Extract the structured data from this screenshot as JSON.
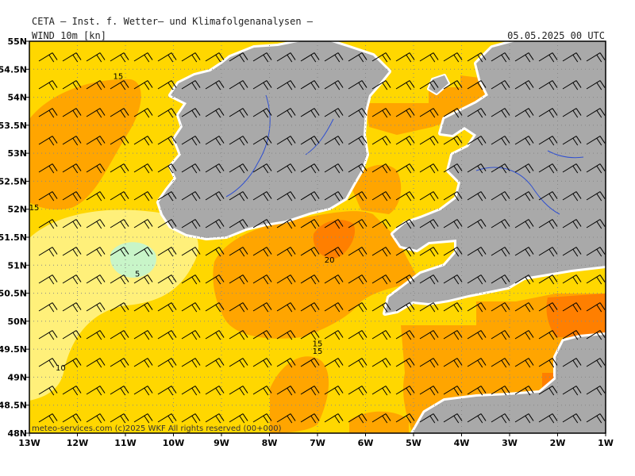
{
  "header": {
    "title": "CETA – Inst. f. Wetter– und Klimafolgenanalysen –",
    "variable": "WIND_10m [kn]",
    "valid": "05.05.2025 00 UTC"
  },
  "footer": {
    "copyright": "meteo-services.com (c)2025 WKF All rights reserved (00+000)"
  },
  "axes": {
    "lon_labels": [
      "13W",
      "12W",
      "11W",
      "10W",
      "9W",
      "8W",
      "7W",
      "6W",
      "5W",
      "4W",
      "3W",
      "2W",
      "1W"
    ],
    "lat_labels": [
      "55N",
      "54.5N",
      "54N",
      "53.5N",
      "53N",
      "52.5N",
      "52N",
      "51.5N",
      "51N",
      "50.5N",
      "50N",
      "49.5N",
      "49N",
      "48.5N",
      "48N"
    ],
    "lon_range": [
      -13,
      -1
    ],
    "lat_range": [
      48,
      55
    ]
  },
  "colors": {
    "land": "#a9a9a9",
    "c5_10": "#fff07a",
    "c10_15": "#ffd700",
    "c15_20": "#ffa500",
    "c20_25": "#ff7f00",
    "calm": "#c8f5c8",
    "river": "#3050d0"
  },
  "contour_labels": [
    {
      "text": "15",
      "lon": -11.15,
      "lat": 54.33
    },
    {
      "text": "15",
      "lon": -12.9,
      "lat": 51.98
    },
    {
      "text": "5",
      "lon": -10.75,
      "lat": 50.8
    },
    {
      "text": "20",
      "lon": -6.75,
      "lat": 51.05
    },
    {
      "text": "15",
      "lon": -7.0,
      "lat": 49.55
    },
    {
      "text": "15",
      "lon": -7.0,
      "lat": 49.42
    },
    {
      "text": "10",
      "lon": -12.35,
      "lat": 49.12
    }
  ]
}
